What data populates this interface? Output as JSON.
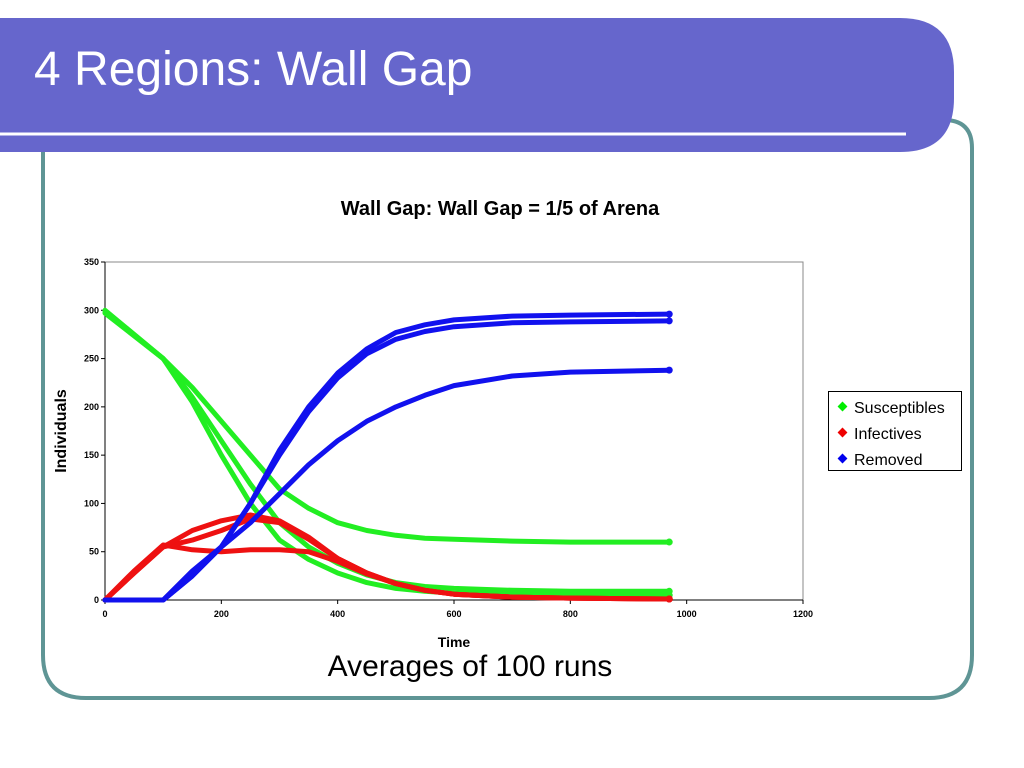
{
  "slide": {
    "title": "4 Regions: Wall Gap",
    "caption": "Averages of 100 runs",
    "colors": {
      "header": "#6666cc",
      "border": "#5f9595"
    }
  },
  "chart_data": {
    "type": "line",
    "title": "Wall Gap: Wall Gap = 1/5 of Arena",
    "xlabel": "Time",
    "ylabel": "Individuals",
    "xlim": [
      0,
      1200
    ],
    "ylim": [
      0,
      350
    ],
    "xticks": [
      0,
      200,
      400,
      600,
      800,
      1000,
      1200
    ],
    "yticks": [
      0,
      50,
      100,
      150,
      200,
      250,
      300,
      350
    ],
    "grid": false,
    "legend_position": "right",
    "legend": [
      {
        "label": "Susceptibles",
        "color": "#00ee00"
      },
      {
        "label": "Infectives",
        "color": "#ee0000"
      },
      {
        "label": "Removed",
        "color": "#0000ee"
      }
    ],
    "series": [
      {
        "name": "Susceptibles",
        "color": "#22ee22",
        "x": [
          0,
          100,
          150,
          200,
          250,
          300,
          350,
          400,
          450,
          500,
          550,
          600,
          700,
          800,
          970
        ],
        "y": [
          300,
          250,
          220,
          185,
          150,
          115,
          95,
          80,
          72,
          67,
          64,
          63,
          61,
          60,
          60
        ]
      },
      {
        "name": "Susceptibles",
        "color": "#22ee22",
        "x": [
          0,
          100,
          150,
          200,
          250,
          300,
          350,
          400,
          450,
          500,
          550,
          600,
          700,
          800,
          970
        ],
        "y": [
          298,
          250,
          210,
          165,
          120,
          80,
          55,
          38,
          26,
          18,
          14,
          12,
          10,
          9,
          9
        ]
      },
      {
        "name": "Susceptibles",
        "color": "#22ee22",
        "x": [
          0,
          100,
          150,
          200,
          250,
          300,
          350,
          400,
          450,
          500,
          550,
          600,
          700,
          800,
          970
        ],
        "y": [
          297,
          250,
          205,
          150,
          100,
          62,
          42,
          28,
          18,
          12,
          9,
          7,
          6,
          5,
          5
        ]
      },
      {
        "name": "Infectives",
        "color": "#ee1111",
        "x": [
          0,
          50,
          100,
          150,
          200,
          250,
          300,
          350,
          400,
          450,
          500,
          550,
          600,
          700,
          800,
          970
        ],
        "y": [
          0,
          30,
          57,
          52,
          50,
          52,
          52,
          50,
          40,
          27,
          17,
          10,
          6,
          3,
          2,
          1
        ]
      },
      {
        "name": "Infectives",
        "color": "#ee1111",
        "x": [
          0,
          50,
          100,
          150,
          200,
          250,
          300,
          350,
          400,
          450,
          500,
          550,
          600,
          700,
          800,
          970
        ],
        "y": [
          0,
          28,
          55,
          62,
          72,
          84,
          80,
          63,
          43,
          28,
          17,
          10,
          6,
          3,
          2,
          1
        ]
      },
      {
        "name": "Infectives",
        "color": "#ee1111",
        "x": [
          0,
          50,
          100,
          150,
          200,
          250,
          300,
          350,
          400,
          450,
          500,
          550,
          600,
          700,
          800,
          970
        ],
        "y": [
          0,
          28,
          55,
          72,
          82,
          88,
          82,
          65,
          43,
          28,
          17,
          10,
          6,
          3,
          2,
          1
        ]
      },
      {
        "name": "Removed",
        "color": "#1111ee",
        "x": [
          0,
          100,
          150,
          200,
          250,
          300,
          350,
          400,
          450,
          500,
          550,
          600,
          700,
          800,
          970
        ],
        "y": [
          0,
          0,
          30,
          55,
          80,
          110,
          140,
          165,
          185,
          200,
          212,
          222,
          232,
          236,
          238
        ]
      },
      {
        "name": "Removed",
        "color": "#1111ee",
        "x": [
          0,
          100,
          150,
          200,
          250,
          300,
          350,
          400,
          450,
          500,
          550,
          600,
          700,
          800,
          970
        ],
        "y": [
          0,
          0,
          25,
          55,
          100,
          150,
          195,
          230,
          255,
          270,
          278,
          283,
          287,
          288,
          289
        ]
      },
      {
        "name": "Removed",
        "color": "#1111ee",
        "x": [
          0,
          100,
          150,
          200,
          250,
          300,
          350,
          400,
          450,
          500,
          550,
          600,
          700,
          800,
          970
        ],
        "y": [
          0,
          0,
          25,
          55,
          100,
          155,
          200,
          235,
          260,
          277,
          285,
          290,
          294,
          295,
          296
        ]
      }
    ]
  }
}
